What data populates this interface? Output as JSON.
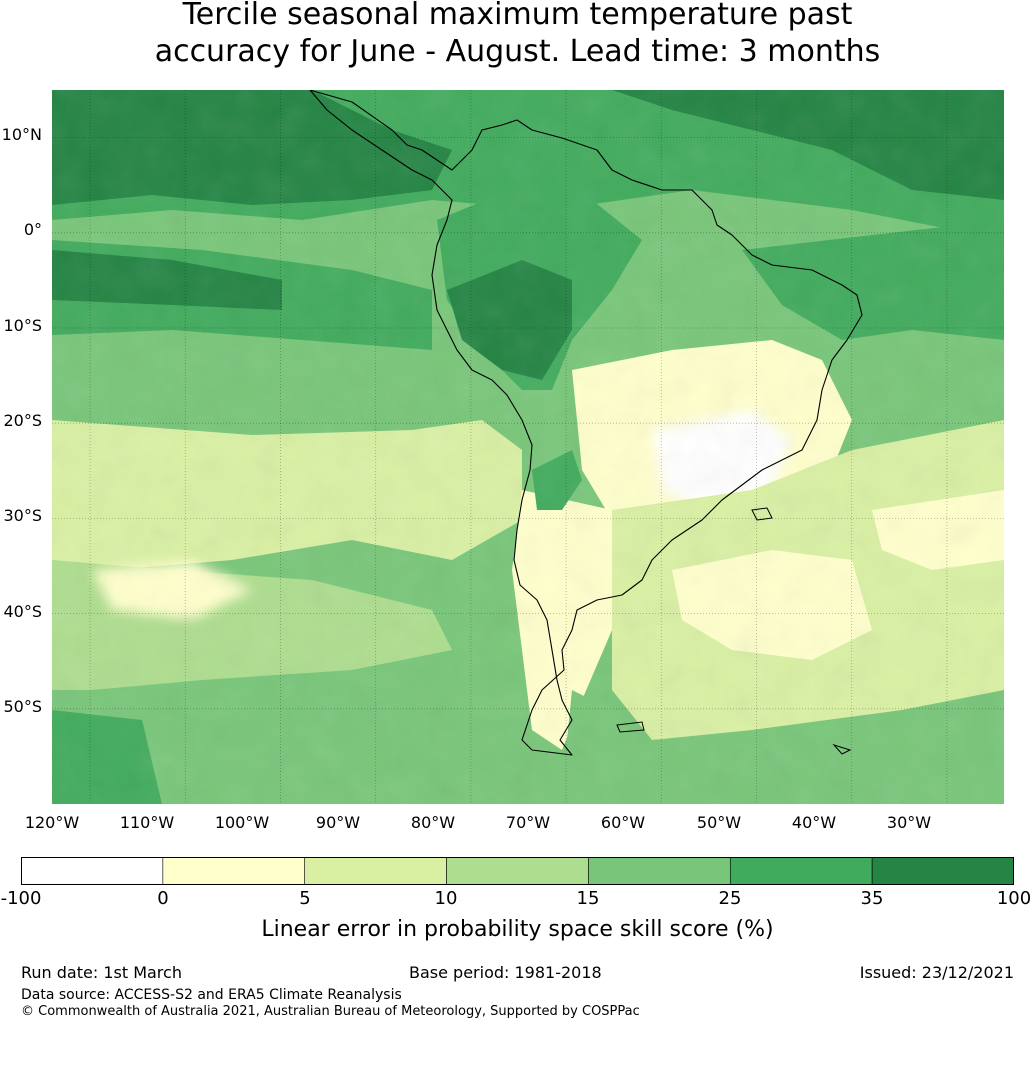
{
  "title": {
    "line1": "Tercile seasonal maximum temperature past",
    "line2": "accuracy for June - August. Lead time: 3 months"
  },
  "map": {
    "region": "South America",
    "lat_labels": [
      "10°N",
      "0°",
      "10°S",
      "20°S",
      "30°S",
      "40°S",
      "50°S"
    ],
    "lon_labels": [
      "120°W",
      "110°W",
      "100°W",
      "90°W",
      "80°W",
      "70°W",
      "60°W",
      "50°W",
      "40°W",
      "30°W"
    ],
    "extent": {
      "lon_min": -124,
      "lon_max": -24,
      "lat_min": -60,
      "lat_max": 15
    },
    "gridlines": true
  },
  "colorbar": {
    "label": "Linear error in probability space skill score (%)",
    "ticks": [
      "-100",
      "0",
      "5",
      "10",
      "15",
      "25",
      "35",
      "100"
    ],
    "colors": [
      "#ffffff",
      "#ffffcc",
      "#d9f0a3",
      "#addd8e",
      "#78c679",
      "#41ab5d",
      "#238443"
    ]
  },
  "footer": {
    "run_date": "Run date: 1st March",
    "base_period": "Base period: 1981-2018",
    "issued": "Issued: 23/12/2021",
    "data_source": "Data source: ACCESS-S2 and ERA5 Climate Reanalysis",
    "copyright": "© Commonwealth of Australia 2021, Australian Bureau of Meteorology, Supported by COSPPac"
  }
}
